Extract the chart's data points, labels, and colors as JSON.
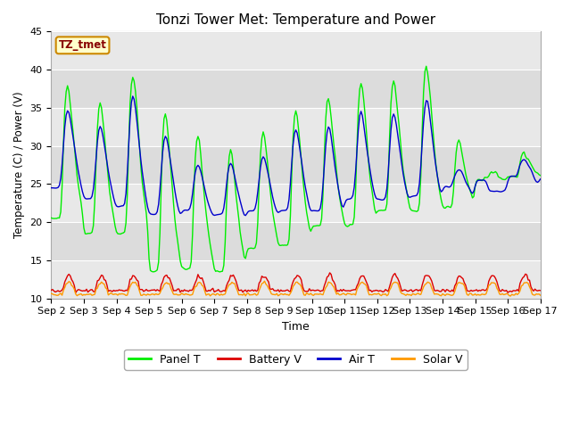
{
  "title": "Tonzi Tower Met: Temperature and Power",
  "xlabel": "Time",
  "ylabel": "Temperature (C) / Power (V)",
  "xlim_days": [
    0,
    15
  ],
  "ylim": [
    10,
    45
  ],
  "yticks": [
    10,
    15,
    20,
    25,
    30,
    35,
    40,
    45
  ],
  "label_text": "TZ_tmet",
  "label_box_color": "#FFFFCC",
  "label_box_edge": "#CC8800",
  "label_text_color": "#880000",
  "colors": {
    "panel_t": "#00EE00",
    "battery_v": "#DD0000",
    "air_t": "#0000CC",
    "solar_v": "#FF9900"
  },
  "legend_labels": [
    "Panel T",
    "Battery V",
    "Air T",
    "Solar V"
  ],
  "legend_colors": [
    "#00EE00",
    "#DD0000",
    "#0000CC",
    "#FF9900"
  ],
  "grid_color": "#FFFFFF",
  "plot_bg": "#DCDCDC",
  "band_color": "#E8E8E8"
}
